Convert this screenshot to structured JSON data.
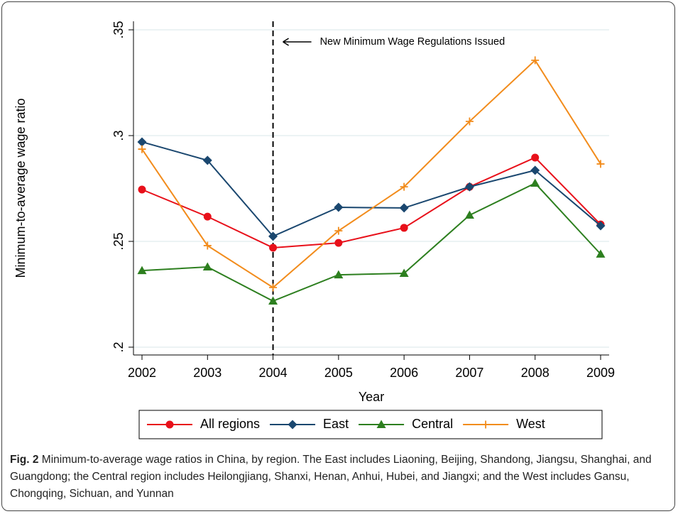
{
  "chart_data": {
    "type": "line",
    "x": [
      2002,
      2003,
      2004,
      2005,
      2006,
      2007,
      2008,
      2009
    ],
    "x_label": "Year",
    "y_label": "Minimum-to-average wage ratio",
    "xlim": [
      2002,
      2009
    ],
    "xticks": [
      2002,
      2003,
      2004,
      2005,
      2006,
      2007,
      2008,
      2009
    ],
    "ylim": [
      0.2,
      0.35
    ],
    "yticks": [
      {
        "value": 0.2,
        "label": ".2"
      },
      {
        "value": 0.25,
        "label": ".25"
      },
      {
        "value": 0.3,
        "label": ".3"
      },
      {
        "value": 0.35,
        "label": ".35"
      }
    ],
    "grid": true,
    "vline": 2004,
    "annotation": "New Minimum Wage Regulations Issued",
    "legend": "bottom",
    "series": [
      {
        "name": "All regions",
        "color": "#e8101a",
        "marker": "circle",
        "values": [
          0.2745,
          0.2617,
          0.247,
          0.2493,
          0.2564,
          0.2758,
          0.2896,
          0.258
        ]
      },
      {
        "name": "East",
        "color": "#1a476f",
        "marker": "diamond",
        "values": [
          0.297,
          0.2883,
          0.2524,
          0.2661,
          0.2658,
          0.2758,
          0.2836,
          0.2574
        ]
      },
      {
        "name": "Central",
        "color": "#2d7f1f",
        "marker": "triangle",
        "values": [
          0.2362,
          0.2379,
          0.2218,
          0.2342,
          0.2349,
          0.2624,
          0.2775,
          0.244
        ]
      },
      {
        "name": "West",
        "color": "#f28c1c",
        "marker": "plus",
        "values": [
          0.2936,
          0.248,
          0.2282,
          0.255,
          0.2758,
          0.3067,
          0.3356,
          0.2866
        ]
      }
    ]
  },
  "caption": {
    "label": "Fig. 2",
    "text": "Minimum-to-average wage ratios in China, by region. The East includes Liaoning, Beijing, Shandong, Jiangsu, Shanghai, and Guangdong; the Central region includes Heilongjiang, Shanxi, Henan, Anhui, Hubei, and Jiangxi; and the West includes Gansu, Chongqing, Sichuan, and Yunnan"
  }
}
